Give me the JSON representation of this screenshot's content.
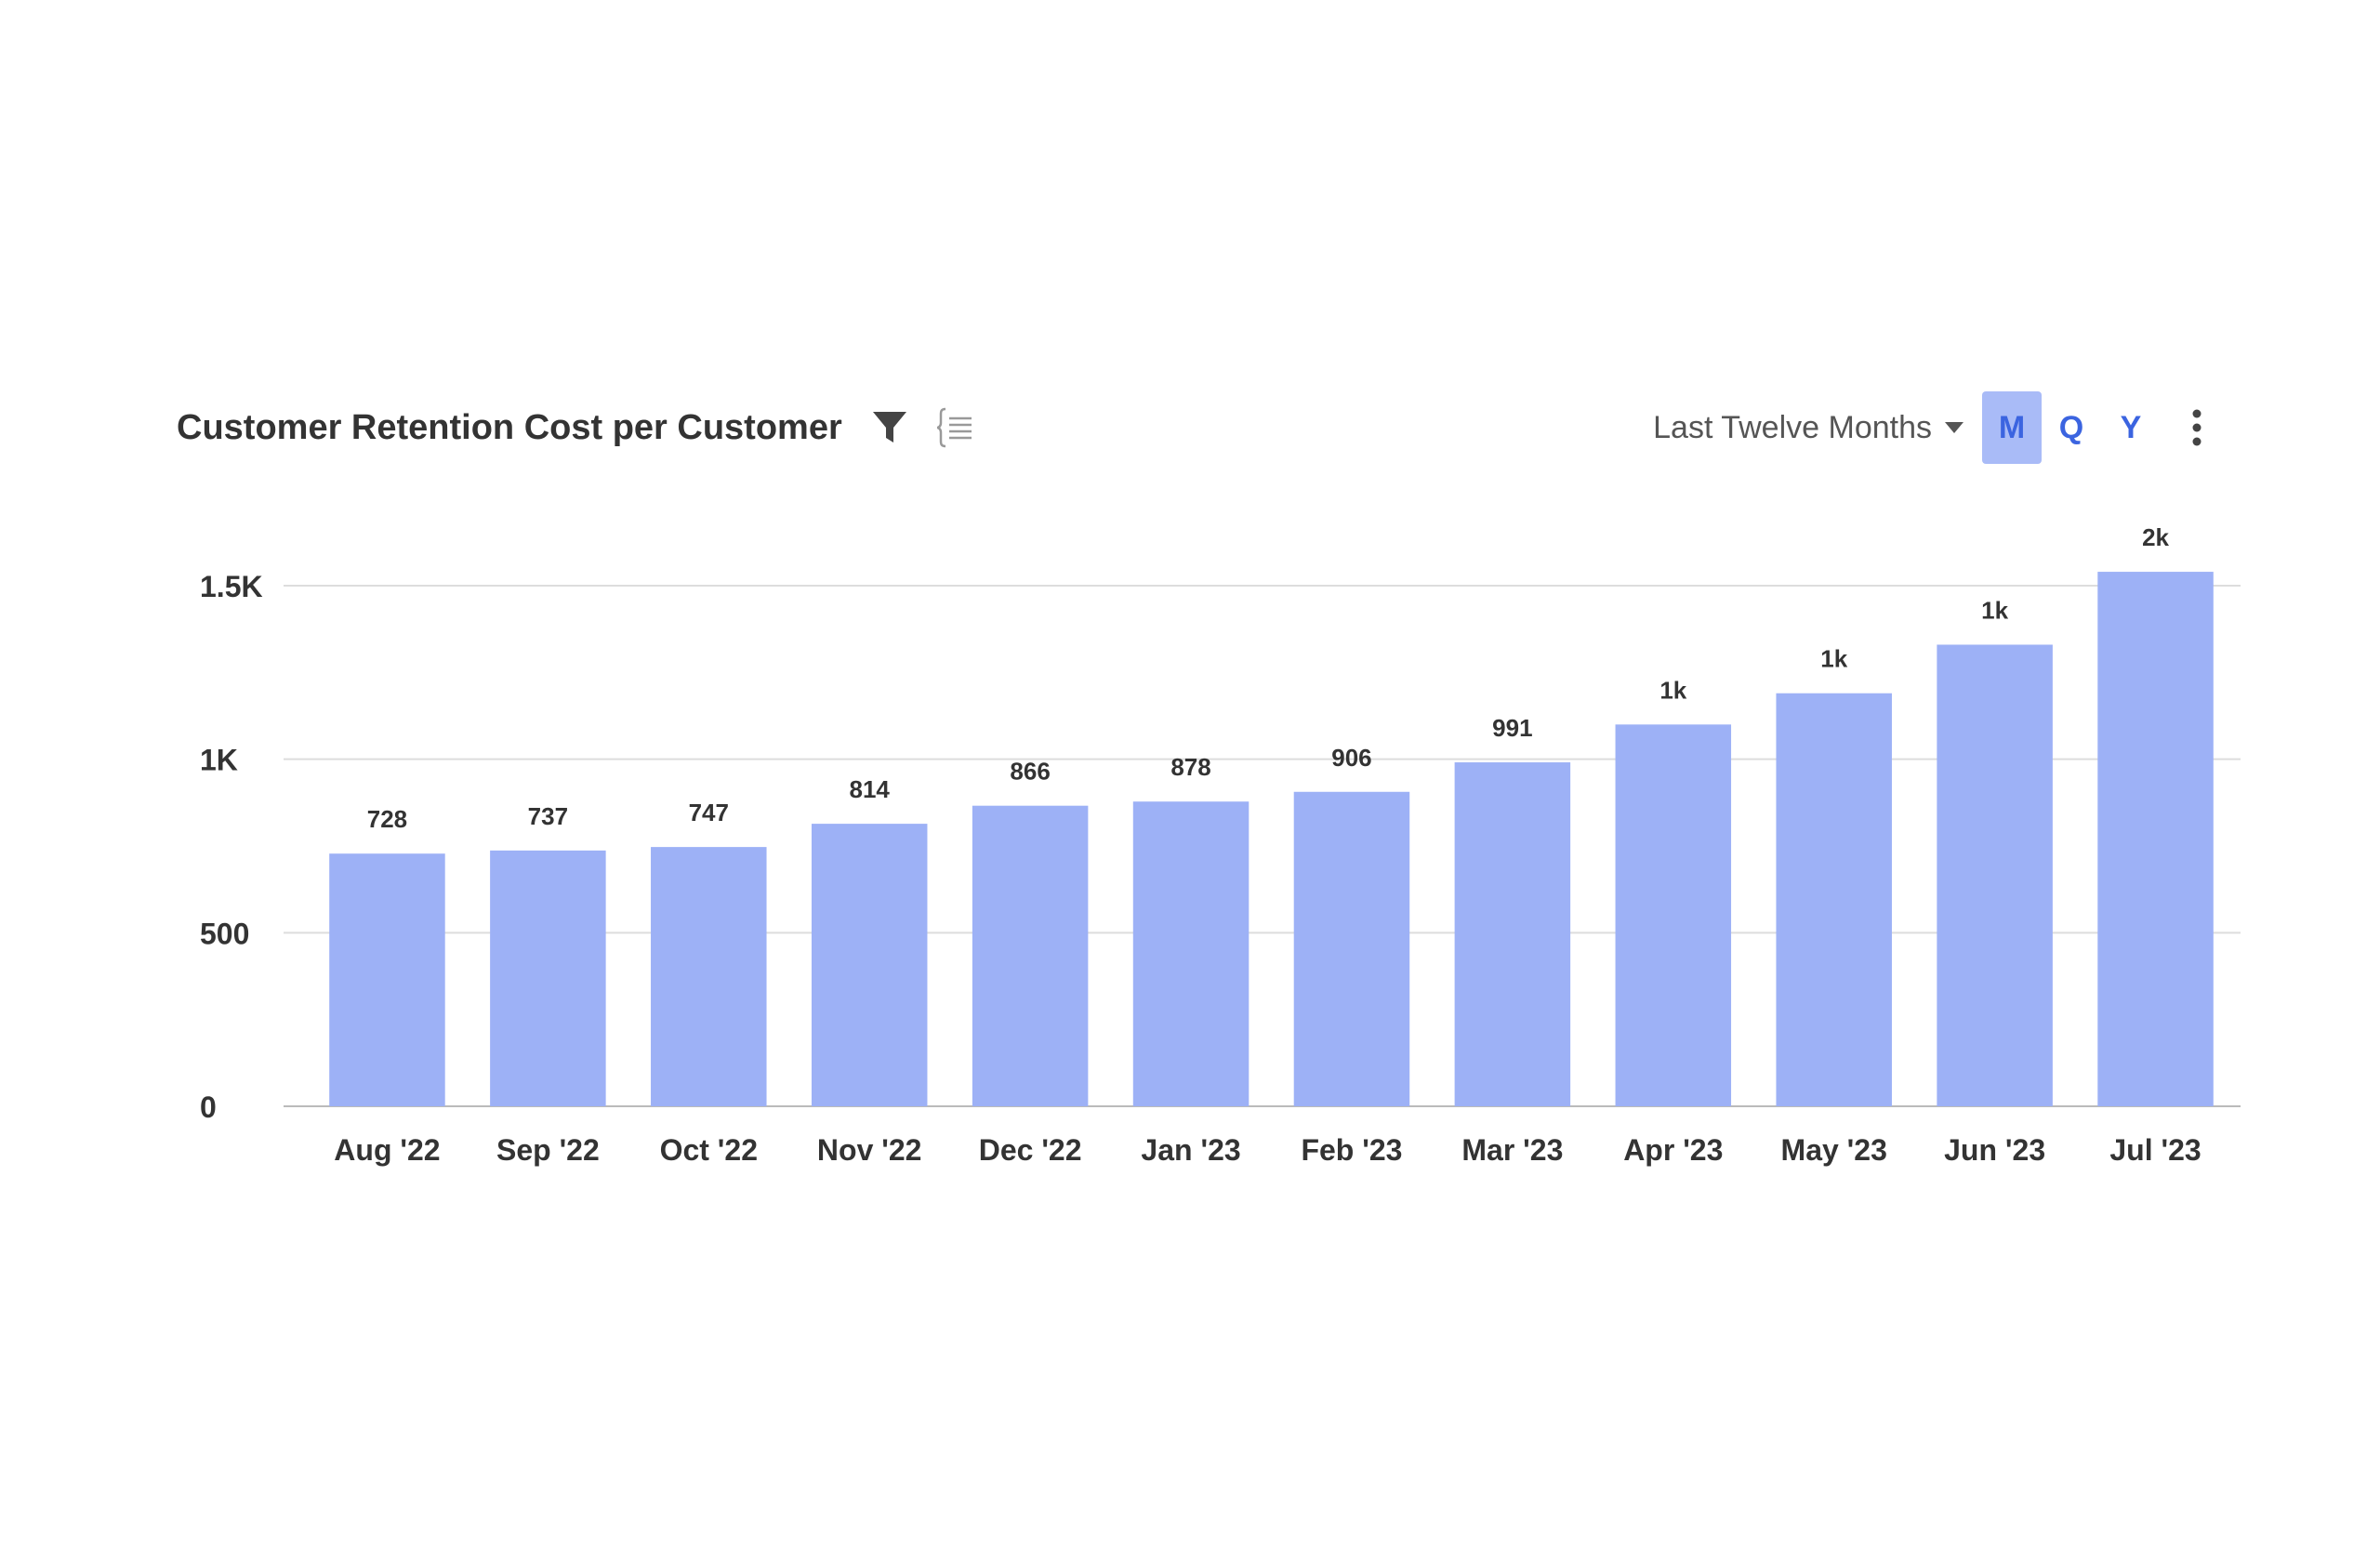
{
  "header": {
    "title": "Customer Retention Cost per Customer",
    "range_label": "Last Twelve Months",
    "periods": [
      "M",
      "Q",
      "Y"
    ],
    "active_period": "M"
  },
  "icons": {
    "filter": "filter-icon",
    "legend": "legend-list-icon",
    "caret": "caret-down-icon",
    "more": "more-vertical-icon"
  },
  "colors": {
    "bar": "#9db1f6",
    "accent": "#3b64e0",
    "active_period_bg": "#a9bbf7",
    "grid": "#dddddd"
  },
  "chart_data": {
    "type": "bar",
    "title": "Customer Retention Cost per Customer",
    "categories": [
      "Aug '22",
      "Sep '22",
      "Oct '22",
      "Nov '22",
      "Dec '22",
      "Jan '23",
      "Feb '23",
      "Mar '23",
      "Apr '23",
      "May '23",
      "Jun '23",
      "Jul '23"
    ],
    "values": [
      728,
      737,
      747,
      814,
      866,
      878,
      906,
      991,
      1100,
      1190,
      1330,
      1540
    ],
    "data_labels": [
      "728",
      "737",
      "747",
      "814",
      "866",
      "878",
      "906",
      "991",
      "1k",
      "1k",
      "1k",
      "2k"
    ],
    "ylim": [
      0,
      1500
    ],
    "yticks": [
      0,
      500,
      1000,
      1500
    ],
    "ytick_labels": [
      "0",
      "500",
      "1K",
      "1.5K"
    ],
    "xlabel": "",
    "ylabel": "",
    "grid": true,
    "legend": "none"
  }
}
